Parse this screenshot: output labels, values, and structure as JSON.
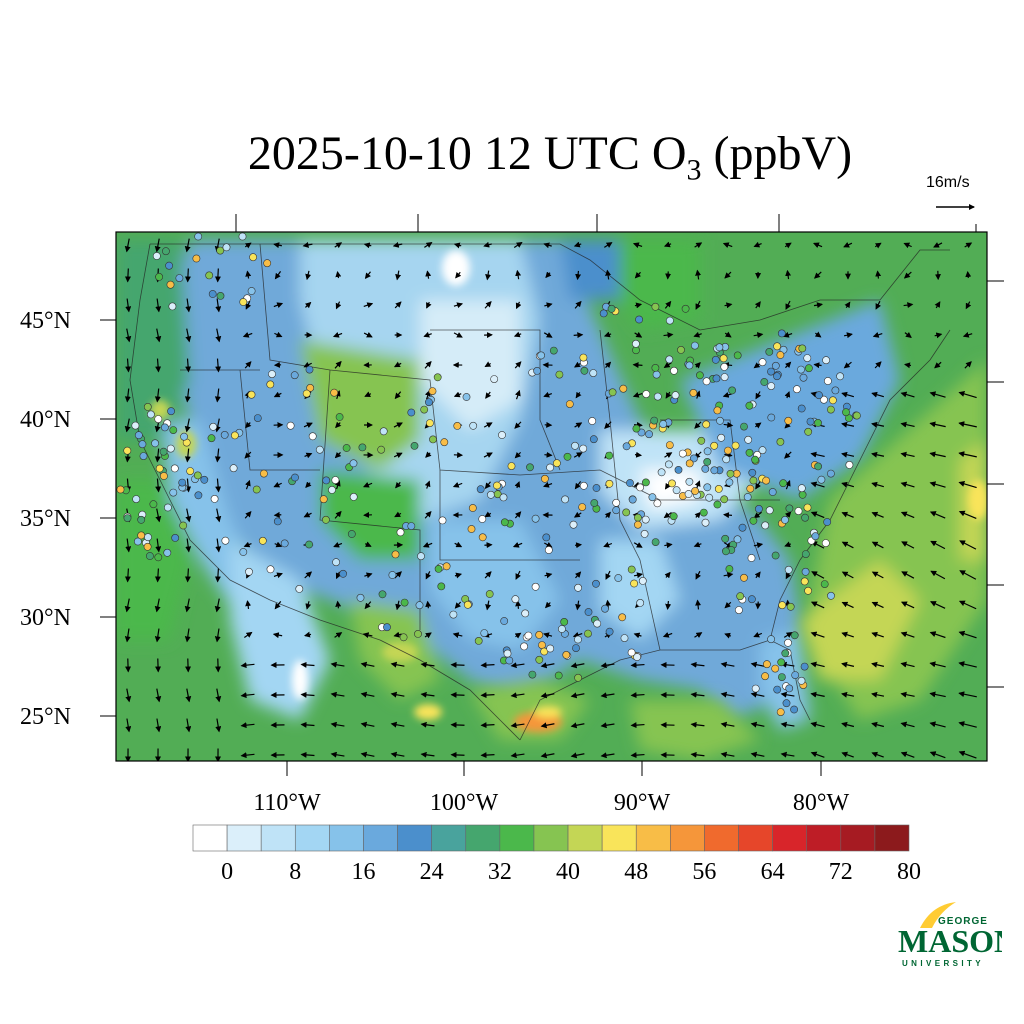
{
  "title": {
    "date": "2025-10-10 12 UTC O",
    "subscript": "3",
    "units": " (ppbV)"
  },
  "wind_reference": {
    "label": "16m/s"
  },
  "map": {
    "lat_labels": [
      "45°N",
      "40°N",
      "35°N",
      "30°N",
      "25°N"
    ],
    "lon_labels": [
      "110°W",
      "100°W",
      "90°W",
      "80°W"
    ]
  },
  "colorbar": {
    "levels": [
      "0",
      "8",
      "16",
      "24",
      "32",
      "40",
      "48",
      "56",
      "64",
      "72",
      "80"
    ],
    "colors": [
      "#ffffff",
      "#dbeffa",
      "#bfe3f7",
      "#a3d6f3",
      "#86c2ea",
      "#6aa9dd",
      "#4b8fcc",
      "#49a39d",
      "#45a66e",
      "#4bb84b",
      "#86c451",
      "#c4d655",
      "#f9e45a",
      "#f8bd47",
      "#f5963a",
      "#f06a2d",
      "#e6462a",
      "#d8252a",
      "#be1d26",
      "#a61b22",
      "#8c1a1c"
    ]
  },
  "logo": {
    "top": "GEORGE",
    "main": "MASON",
    "bottom": "UNIVERSITY",
    "colors": {
      "green": "#006633",
      "gold": "#ffcc33"
    }
  }
}
